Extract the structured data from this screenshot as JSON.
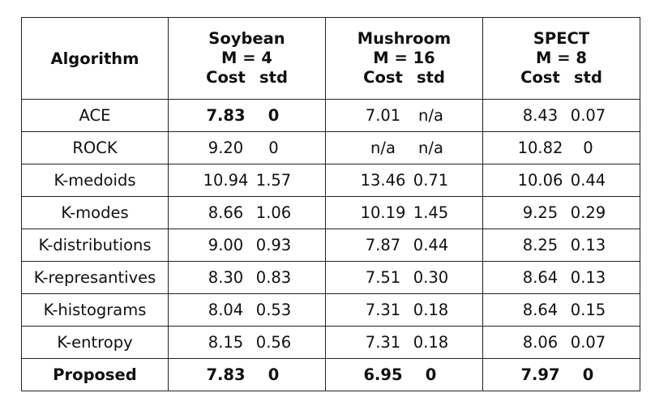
{
  "table": {
    "corner": "Algorithm",
    "datasets": [
      {
        "name": "Soybean",
        "m": "M = 4",
        "cost_h": "Cost",
        "std_h": "std"
      },
      {
        "name": "Mushroom",
        "m": "M = 16",
        "cost_h": "Cost",
        "std_h": "std"
      },
      {
        "name": "SPECT",
        "m": "M = 8",
        "cost_h": "Cost",
        "std_h": "std"
      }
    ],
    "rows": [
      {
        "algo": "ACE",
        "cells": [
          [
            "7.83",
            "0"
          ],
          [
            "7.01",
            "n/a"
          ],
          [
            "8.43",
            "0.07"
          ]
        ]
      },
      {
        "algo": "ROCK",
        "cells": [
          [
            "9.20",
            "0"
          ],
          [
            "n/a",
            "n/a"
          ],
          [
            "10.82",
            "0"
          ]
        ]
      },
      {
        "algo": "K-medoids",
        "cells": [
          [
            "10.94",
            "1.57"
          ],
          [
            "13.46",
            "0.71"
          ],
          [
            "10.06",
            "0.44"
          ]
        ]
      },
      {
        "algo": "K-modes",
        "cells": [
          [
            "8.66",
            "1.06"
          ],
          [
            "10.19",
            "1.45"
          ],
          [
            "9.25",
            "0.29"
          ]
        ]
      },
      {
        "algo": "K-distributions",
        "cells": [
          [
            "9.00",
            "0.93"
          ],
          [
            "7.87",
            "0.44"
          ],
          [
            "8.25",
            "0.13"
          ]
        ]
      },
      {
        "algo": "K-represantives",
        "cells": [
          [
            "8.30",
            "0.83"
          ],
          [
            "7.51",
            "0.30"
          ],
          [
            "8.64",
            "0.13"
          ]
        ]
      },
      {
        "algo": "K-histograms",
        "cells": [
          [
            "8.04",
            "0.53"
          ],
          [
            "7.31",
            "0.18"
          ],
          [
            "8.64",
            "0.15"
          ]
        ]
      },
      {
        "algo": "K-entropy",
        "cells": [
          [
            "8.15",
            "0.56"
          ],
          [
            "7.31",
            "0.18"
          ],
          [
            "8.06",
            "0.07"
          ]
        ]
      },
      {
        "algo": "Proposed",
        "cells": [
          [
            "7.83",
            "0"
          ],
          [
            "6.95",
            "0"
          ],
          [
            "7.97",
            "0"
          ]
        ]
      }
    ]
  }
}
